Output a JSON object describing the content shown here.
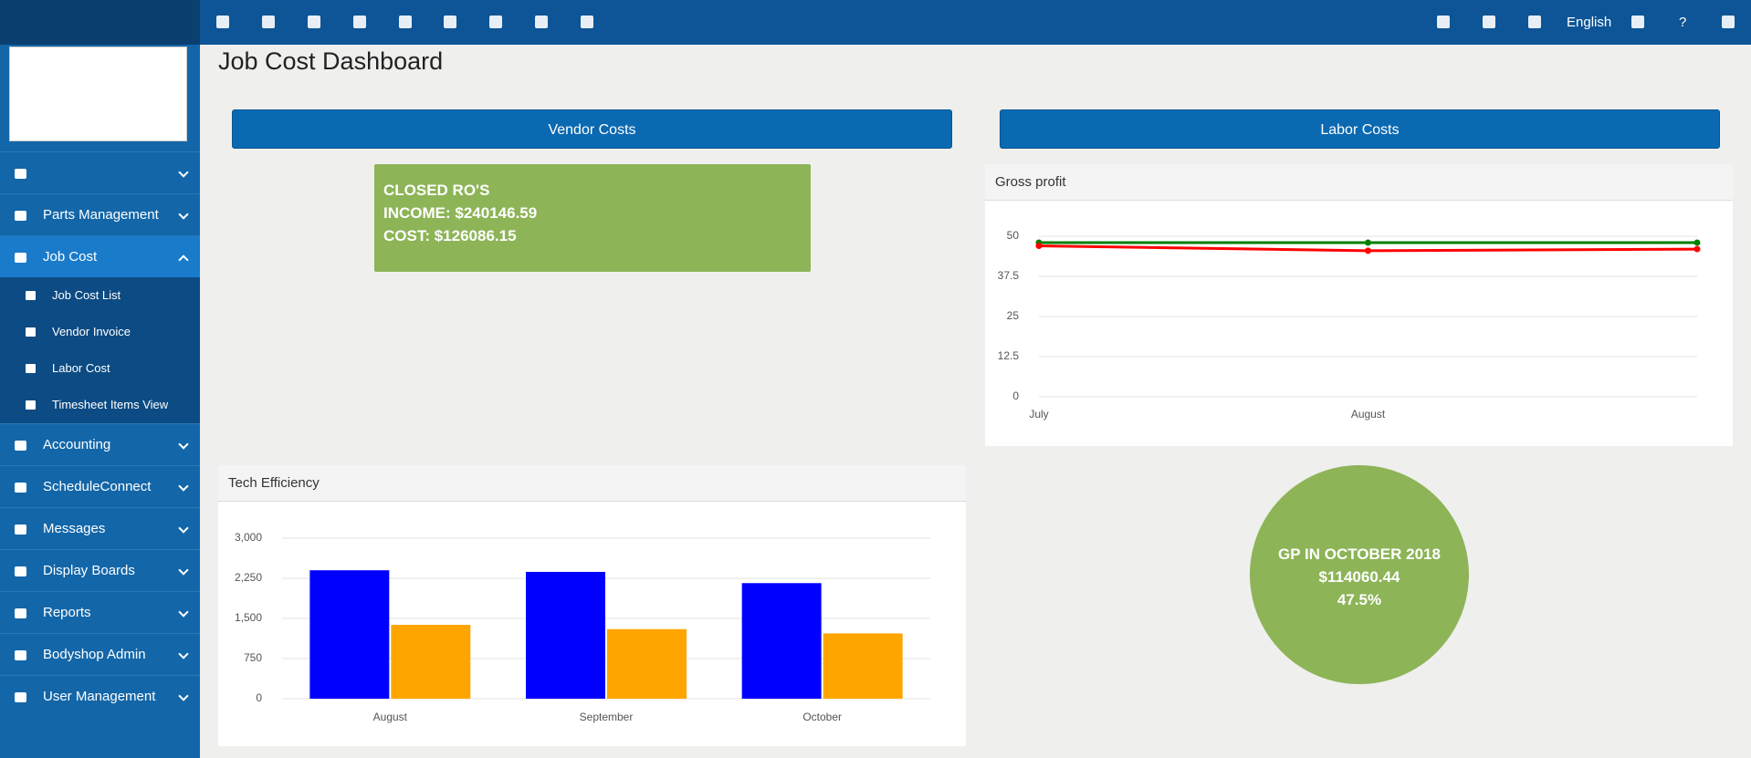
{
  "topbar": {
    "language": "English",
    "help": "?"
  },
  "sidebar": {
    "menu": [
      {
        "label": "Parts Management"
      },
      {
        "label": "Job Cost",
        "active": true,
        "children": [
          "Job Cost List",
          "Vendor Invoice",
          "Labor Cost",
          "Timesheet Items View"
        ]
      },
      {
        "label": "Accounting"
      },
      {
        "label": "ScheduleConnect"
      },
      {
        "label": "Messages"
      },
      {
        "label": "Display Boards"
      },
      {
        "label": "Reports"
      },
      {
        "label": "Bodyshop Admin"
      },
      {
        "label": "User Management"
      }
    ]
  },
  "page": {
    "title": "Job Cost Dashboard",
    "buttons": [
      "Vendor Costs",
      "Labor Costs"
    ],
    "closed_card": [
      "CLOSED RO'S",
      "INCOME: $240146.59",
      "COST: $126086.15"
    ],
    "gp_circle": [
      "GP IN OCTOBER 2018",
      "$114060.44",
      "47.5%"
    ]
  },
  "chart_data": [
    {
      "type": "line",
      "title": "Gross profit",
      "categories": [
        "July",
        "August",
        null
      ],
      "series": [
        {
          "color": "#008000",
          "values": [
            48,
            48,
            48
          ]
        },
        {
          "color": "#ff0000",
          "values": [
            47,
            45.5,
            46
          ]
        }
      ],
      "ylim": [
        0,
        50
      ],
      "yticks": [
        0,
        12.5,
        25,
        37.5,
        50
      ],
      "grid": true
    },
    {
      "type": "bar",
      "title": "Tech Efficiency",
      "categories": [
        "August",
        "September",
        "October"
      ],
      "series": [
        {
          "color": "#0000ff",
          "values": [
            2400,
            2370,
            2160
          ]
        },
        {
          "color": "#ffa500",
          "values": [
            1380,
            1300,
            1220
          ]
        }
      ],
      "ylim": [
        0,
        3000
      ],
      "yticks": [
        0,
        750,
        {
          "value": 1500,
          "label": "1,500"
        },
        {
          "value": 2250,
          "label": "2,250"
        },
        {
          "value": 3000,
          "label": "3,000"
        }
      ],
      "grid": true
    }
  ]
}
